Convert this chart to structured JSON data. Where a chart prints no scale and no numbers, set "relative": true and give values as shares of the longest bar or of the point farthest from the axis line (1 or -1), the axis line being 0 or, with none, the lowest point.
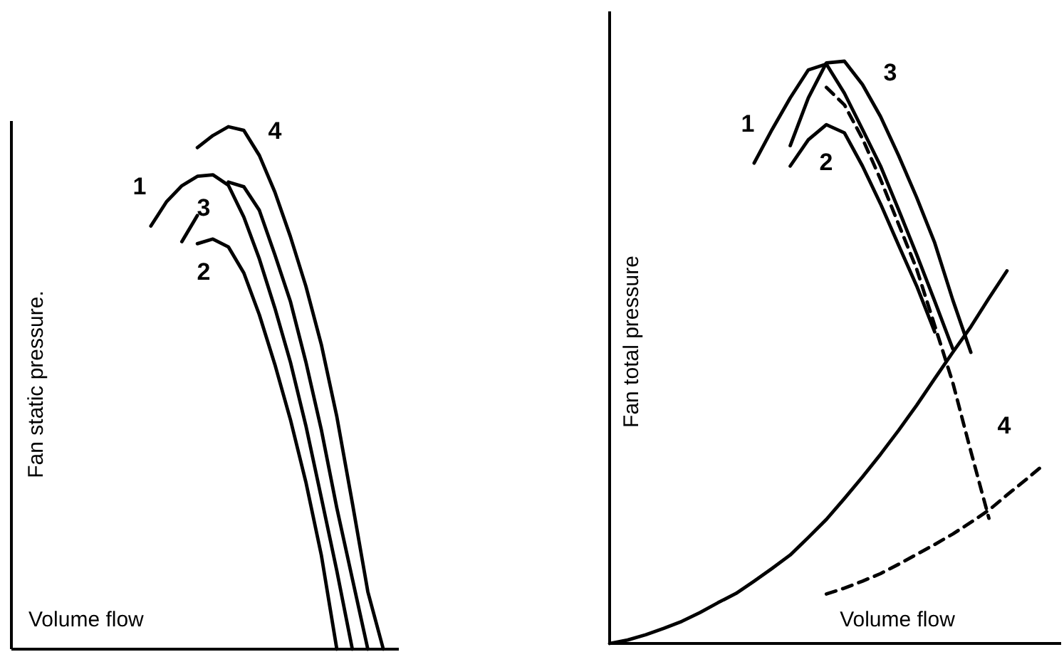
{
  "chart_data": [
    {
      "type": "line",
      "relative": true,
      "ylabel": "Fan static pressure.",
      "xlabel": "Volume flow",
      "line_style": "solid",
      "categories": [
        null,
        null,
        null,
        null,
        null,
        null,
        null,
        null,
        null,
        null,
        null,
        null,
        null,
        null,
        null,
        null,
        null,
        null,
        null,
        null,
        null,
        null,
        null,
        null,
        null,
        null
      ],
      "series": [
        {
          "name": "1",
          "color": "#000000",
          "values": [
            null,
            null,
            null,
            null,
            null,
            null,
            null,
            null,
            null,
            0.81,
            0.856,
            0.887,
            0.905,
            0.908,
            0.888,
            0.827,
            0.747,
            0.653,
            0.55,
            0.428,
            0.29,
            0.15,
            0,
            null,
            null,
            null
          ]
        },
        {
          "name": "2",
          "color": "#000000",
          "values": [
            null,
            null,
            null,
            null,
            null,
            null,
            null,
            null,
            null,
            null,
            null,
            null,
            0.776,
            0.785,
            0.77,
            0.72,
            0.64,
            0.545,
            0.44,
            0.32,
            0.18,
            0,
            null,
            null,
            null,
            null
          ]
        },
        {
          "name": "3",
          "color": "#000000",
          "values": [
            null,
            null,
            null,
            null,
            null,
            null,
            null,
            null,
            null,
            null,
            null,
            0.78,
            0.83,
            null,
            0.894,
            0.885,
            0.84,
            0.755,
            0.666,
            0.55,
            0.42,
            0.27,
            0.135,
            0,
            null,
            null
          ]
        },
        {
          "name": "4",
          "color": "#000000",
          "values": [
            null,
            null,
            null,
            null,
            null,
            null,
            null,
            null,
            null,
            null,
            null,
            null,
            0.96,
            0.983,
            1.0,
            0.993,
            0.945,
            0.875,
            0.79,
            0.695,
            0.583,
            0.445,
            0.28,
            0.11,
            0,
            null
          ]
        }
      ]
    },
    {
      "type": "line",
      "relative": true,
      "ylabel": "Fan total pressure",
      "xlabel": "Volume flow",
      "line_style": "solid",
      "categories": [
        null,
        null,
        null,
        null,
        null,
        null,
        null,
        null,
        null,
        null,
        null,
        null,
        null,
        null,
        null,
        null,
        null,
        null,
        null,
        null,
        null,
        null,
        null,
        null,
        null,
        null
      ],
      "series": [
        {
          "name": "1",
          "color": "#000000",
          "values": [
            null,
            null,
            null,
            null,
            null,
            null,
            null,
            null,
            0.825,
            0.883,
            0.937,
            0.985,
            0.995,
            0.945,
            0.883,
            0.82,
            0.745,
            0.668,
            0.588,
            0.506,
            null,
            null,
            null,
            null,
            null,
            null
          ]
        },
        {
          "name": "2",
          "color": "#000000",
          "values": [
            null,
            null,
            null,
            null,
            null,
            null,
            null,
            null,
            null,
            null,
            0.82,
            0.865,
            0.891,
            0.877,
            0.82,
            0.755,
            0.684,
            0.614,
            0.535,
            null,
            null,
            null,
            null,
            null,
            null,
            null
          ]
        },
        {
          "name": "3",
          "color": "#000000",
          "values": [
            null,
            null,
            null,
            null,
            null,
            null,
            null,
            null,
            null,
            null,
            0.855,
            0.937,
            0.997,
            1.0,
            0.96,
            0.905,
            0.838,
            0.766,
            0.688,
            0.59,
            0.5,
            null,
            null,
            null,
            null,
            null
          ]
        },
        {
          "name": "4",
          "color": "#000000",
          "line_style": "dashed",
          "values": [
            null,
            null,
            null,
            null,
            null,
            null,
            null,
            null,
            null,
            null,
            null,
            null,
            0.955,
            0.925,
            0.867,
            0.797,
            0.72,
            0.643,
            0.546,
            0.448,
            0.33,
            0.215,
            null,
            null,
            null,
            null
          ]
        },
        {
          "color": "#000000",
          "values": [
            0,
            0.006,
            0.015,
            0.026,
            0.038,
            0.053,
            0.07,
            0.086,
            0.107,
            0.129,
            0.152,
            0.182,
            0.213,
            0.249,
            0.286,
            0.325,
            0.366,
            0.409,
            0.455,
            0.5,
            0.544,
            0.593,
            0.64,
            null,
            null,
            null
          ]
        },
        {
          "color": "#000000",
          "line_style": "dashed",
          "values": [
            null,
            null,
            null,
            null,
            null,
            null,
            null,
            null,
            null,
            null,
            null,
            null,
            0.085,
            0.095,
            0.107,
            0.12,
            0.136,
            0.153,
            0.17,
            0.188,
            0.208,
            0.229,
            0.255,
            0.28,
            0.306,
            null
          ]
        }
      ]
    }
  ]
}
